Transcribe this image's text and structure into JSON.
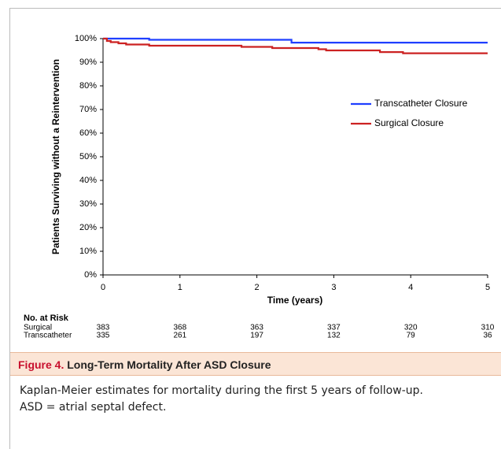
{
  "chart_data": {
    "type": "step",
    "ylabel": "Patients Surviving without a Reintervention",
    "xlabel": "Time (years)",
    "x": [
      0,
      0.05,
      0.1,
      0.2,
      0.3,
      0.6,
      1.8,
      2.2,
      2.45,
      2.8,
      2.9,
      3.6,
      3.9,
      5
    ],
    "series": [
      {
        "name": "Transcatheter Closure",
        "color": "#1f3fff",
        "values": [
          100,
          100,
          100,
          100,
          100,
          99.5,
          99.5,
          99.5,
          98.3,
          98.3,
          98.3,
          98.3,
          98.3,
          98.3
        ]
      },
      {
        "name": "Surgical Closure",
        "color": "#cc2222",
        "values": [
          100,
          99,
          98.5,
          98,
          97.5,
          97,
          96.5,
          96,
          96,
          95.5,
          95,
          94.3,
          93.8,
          93.8
        ]
      }
    ],
    "xlim": [
      0,
      5
    ],
    "xticks": [
      0,
      1,
      2,
      3,
      4,
      5
    ],
    "ylim": [
      0,
      100
    ],
    "yticks": [
      {
        "value": 0,
        "label": "0%"
      },
      {
        "value": 10,
        "label": "10%"
      },
      {
        "value": 20,
        "label": "20%"
      },
      {
        "value": 30,
        "label": "30%"
      },
      {
        "value": 40,
        "label": "40%"
      },
      {
        "value": 50,
        "label": "50%"
      },
      {
        "value": 60,
        "label": "60%"
      },
      {
        "value": 70,
        "label": "70%"
      },
      {
        "value": 80,
        "label": "80%"
      },
      {
        "value": 90,
        "label": "90%"
      },
      {
        "value": 100,
        "label": "100%"
      }
    ],
    "grid": false,
    "legend": "upper right",
    "risk_table": {
      "title": "No. at Risk",
      "rows": [
        {
          "label": "Surgical",
          "values": [
            383,
            368,
            363,
            337,
            320,
            310
          ]
        },
        {
          "label": "Transcatheter",
          "values": [
            335,
            261,
            197,
            132,
            79,
            36
          ]
        }
      ]
    }
  },
  "caption": {
    "label": "Figure 4.",
    "title": "Long-Term Mortality After ASD Closure",
    "lines": [
      "Kaplan-Meier estimates for mortality during the first 5 years of follow-up.",
      "ASD = atrial septal defect."
    ]
  }
}
